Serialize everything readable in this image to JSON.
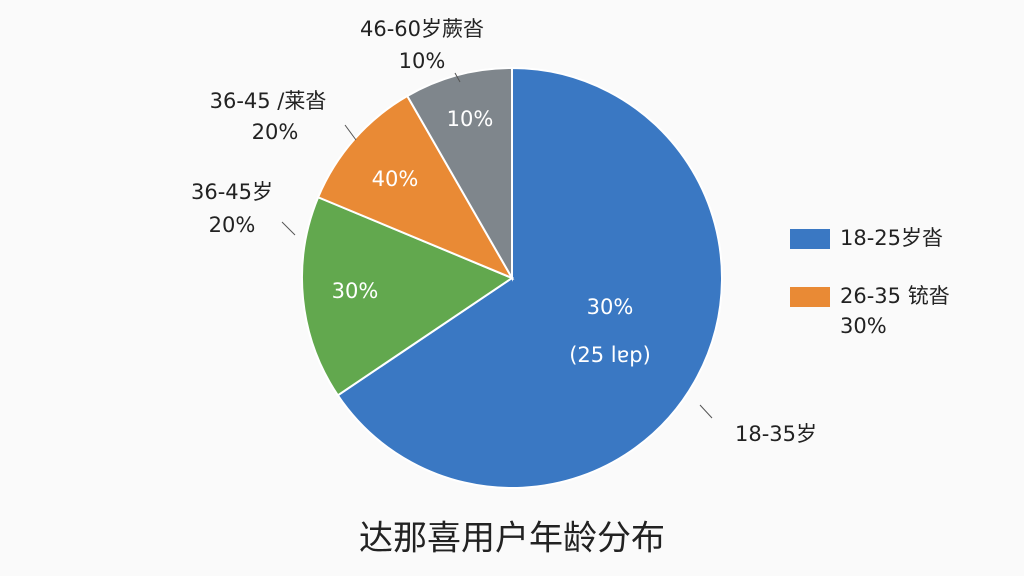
{
  "chart_data": {
    "type": "pie",
    "title": "达那喜用户年龄分布",
    "categories": [
      "18-35岁",
      "36-45岁",
      "36-45 /莱沓",
      "46-60岁蕨沓"
    ],
    "values": [
      65.5,
      15.7,
      10.4,
      8.3
    ],
    "colors": [
      "#3a78c3",
      "#62a84e",
      "#e98a35",
      "#7f868c"
    ],
    "annotations": [
      "30%",
      "(25 lɐp)",
      "30%",
      "40%",
      "10%",
      "20%",
      "20%",
      "10%"
    ],
    "legend_position": "right",
    "legend": [
      {
        "name": "18-25岁沓",
        "color": "#3a78c3"
      },
      {
        "name": "26-35 铳沓",
        "color": "#e98a35",
        "note": "30%"
      }
    ]
  }
}
